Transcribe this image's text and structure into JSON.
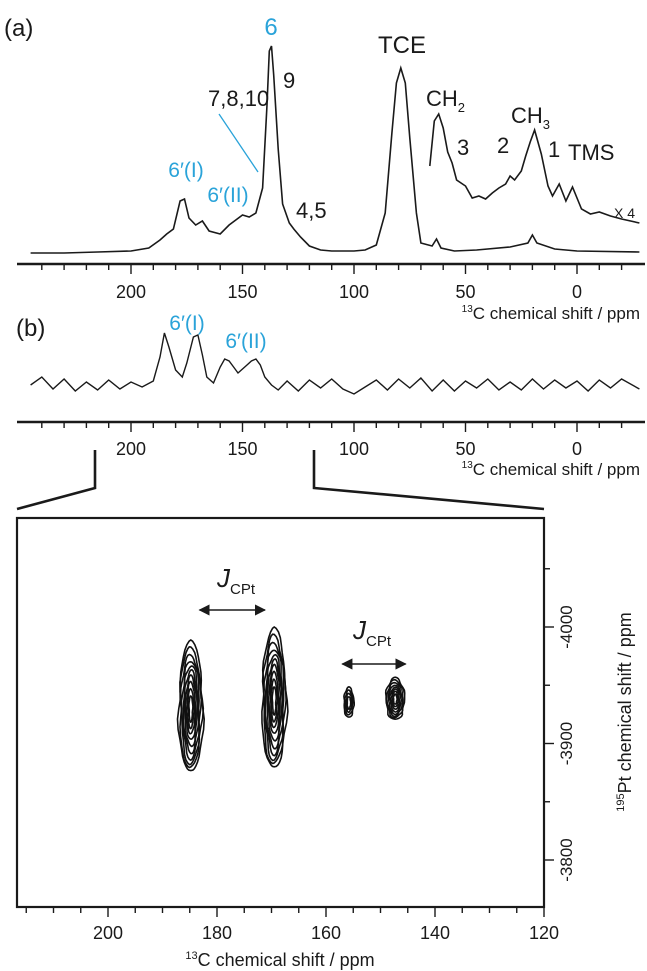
{
  "chart_data": [
    {
      "panel": "(a)",
      "type": "line",
      "xlabel_sup": "13",
      "xlabel_main": "C chemical shift / ppm",
      "xlim": [
        245,
        -28
      ],
      "xticks": [
        200,
        150,
        100,
        50,
        0
      ],
      "series": [
        {
          "x": [
            245,
            230,
            215,
            200,
            192,
            187,
            184,
            181,
            178,
            176,
            174,
            171,
            168,
            165,
            160,
            156,
            153,
            150,
            147,
            144,
            141,
            139,
            138,
            137,
            136,
            134,
            132,
            129,
            127,
            124,
            120,
            115,
            110,
            100,
            95,
            90,
            86,
            83,
            81,
            79,
            77,
            75,
            72,
            70,
            65,
            63,
            61,
            55,
            45,
            30,
            22,
            20,
            18,
            10,
            0,
            -28
          ],
          "y": [
            0,
            0,
            1,
            2,
            5,
            13,
            19,
            24,
            52,
            54,
            35,
            28,
            32,
            22,
            19,
            28,
            33,
            38,
            36,
            40,
            65,
            148,
            202,
            207,
            178,
            104,
            49,
            30,
            24,
            16,
            7,
            3,
            2,
            2,
            3,
            8,
            40,
            120,
            170,
            185,
            170,
            115,
            40,
            10,
            7,
            14,
            5,
            2,
            3,
            6,
            10,
            18,
            10,
            4,
            2,
            1
          ]
        },
        {
          "name": "X 4",
          "x": [
            66,
            64,
            62,
            60,
            58,
            56,
            54,
            50,
            47,
            44,
            41,
            38,
            35,
            32,
            30,
            28,
            25,
            23,
            21,
            19,
            16,
            13,
            11,
            8,
            5,
            2,
            -2,
            -6,
            -10,
            -15,
            -20,
            -28
          ],
          "y": [
            0,
            45,
            52,
            38,
            14,
            3,
            -14,
            -20,
            -32,
            -30,
            -33,
            -27,
            -22,
            -18,
            -10,
            -14,
            -5,
            10,
            24,
            36,
            12,
            -20,
            -30,
            -18,
            -35,
            -21,
            -43,
            -48,
            -46,
            -50,
            -53,
            -57
          ]
        }
      ],
      "annotations": [
        {
          "text": "6",
          "color": "#2aa3d9"
        },
        {
          "text": "9"
        },
        {
          "text": "7,8,10"
        },
        {
          "text": "TCE"
        },
        {
          "text": "CH",
          "sub": "2"
        },
        {
          "text": "CH",
          "sub": "3"
        },
        {
          "text": "3"
        },
        {
          "text": "2"
        },
        {
          "text": "1"
        },
        {
          "text": "TMS"
        },
        {
          "text": "6′(I)",
          "color": "#2aa3d9"
        },
        {
          "text": "6′(II)",
          "color": "#2aa3d9"
        },
        {
          "text": "4,5"
        },
        {
          "text": "X 4"
        }
      ]
    },
    {
      "panel": "(b)",
      "type": "line",
      "xlabel_sup": "13",
      "xlabel_main": "C chemical shift / ppm",
      "xlim": [
        245,
        -28
      ],
      "xticks": [
        200,
        150,
        100,
        50,
        0
      ],
      "series": [
        {
          "x": [
            245,
            240,
            235,
            230,
            225,
            220,
            215,
            210,
            205,
            200,
            195,
            190,
            187,
            185,
            183,
            180,
            177,
            175,
            172,
            170,
            168,
            166,
            163,
            160,
            158,
            156,
            154,
            152,
            150,
            148,
            146,
            144,
            142,
            140,
            137,
            134,
            130,
            125,
            120,
            115,
            110,
            105,
            100,
            95,
            90,
            85,
            80,
            75,
            70,
            65,
            60,
            55,
            50,
            45,
            40,
            35,
            30,
            25,
            20,
            15,
            10,
            5,
            0,
            -5,
            -10,
            -15,
            -20,
            -28
          ],
          "y": [
            0,
            8,
            -4,
            6,
            -6,
            3,
            -5,
            5,
            -4,
            3,
            -2,
            4,
            28,
            52,
            38,
            15,
            8,
            22,
            48,
            50,
            30,
            8,
            2,
            18,
            26,
            24,
            18,
            12,
            16,
            20,
            24,
            26,
            20,
            8,
            0,
            -5,
            4,
            -6,
            5,
            -3,
            6,
            -4,
            -9,
            -2,
            5,
            -5,
            6,
            -3,
            7,
            -6,
            5,
            -6,
            4,
            -3,
            6,
            -5,
            3,
            -5,
            6,
            -4,
            5,
            -3,
            4,
            -6,
            5,
            -3,
            6,
            -4
          ]
        }
      ],
      "annotations": [
        {
          "text": "6′(I)",
          "color": "#2aa3d9"
        },
        {
          "text": "6′(II)",
          "color": "#2aa3d9"
        }
      ]
    },
    {
      "panel": "2D",
      "type": "contour",
      "xlabel_sup": "13",
      "xlabel_main": "C chemical shift / ppm",
      "ylabel_sup": "195",
      "ylabel_main": "Pt chemical shift / ppm",
      "xlim": [
        220,
        120
      ],
      "ylim": [
        -4120,
        -3750
      ],
      "xticks": [
        200,
        180,
        160,
        140,
        120
      ],
      "yticks": [
        -4000,
        -3900,
        -3800
      ],
      "yticklabels": [
        "-4000",
        "-3900",
        "-3800"
      ],
      "peaks": [
        {
          "x": 184.8,
          "y": -3930,
          "rx": 2.2,
          "ry": 56,
          "levels": 10
        },
        {
          "x": 169.5,
          "y": -3937,
          "rx": 2.2,
          "ry": 60,
          "levels": 10
        },
        {
          "x": 155.8,
          "y": -3935,
          "rx": 0.9,
          "ry": 13,
          "levels": 4
        },
        {
          "x": 147.3,
          "y": -3938,
          "rx": 1.7,
          "ry": 18,
          "levels": 8
        }
      ],
      "couplings": [
        {
          "label": "J",
          "sub": "CPt",
          "x1": 183.2,
          "x2": 171.2
        },
        {
          "label": "J",
          "sub": "CPt",
          "x1": 157.0,
          "x2": 145.4
        }
      ]
    }
  ]
}
